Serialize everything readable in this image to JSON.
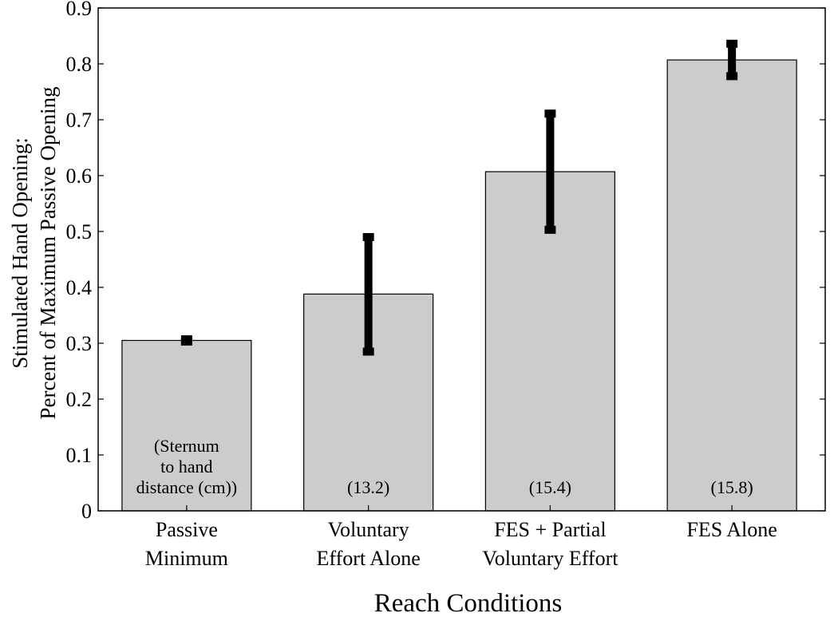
{
  "chart_data": {
    "type": "bar",
    "title": "",
    "xlabel": "Reach Conditions",
    "ylabel_lines": [
      "Stimulated Hand Opening:",
      "Percent of Maximum Passive Opening"
    ],
    "ylim": [
      0,
      0.9
    ],
    "yticks": [
      "0",
      "0.1",
      "0.2",
      "0.3",
      "0.4",
      "0.5",
      "0.6",
      "0.7",
      "0.8",
      "0.9"
    ],
    "categories": [
      [
        "Passive",
        "Minimum"
      ],
      [
        "Voluntary",
        "Effort Alone"
      ],
      [
        "FES + Partial",
        "Voluntary Effort"
      ],
      [
        "FES Alone"
      ]
    ],
    "values": [
      0.305,
      0.388,
      0.607,
      0.807
    ],
    "error_low": [
      0.303,
      0.285,
      0.503,
      0.778
    ],
    "error_high": [
      0.307,
      0.49,
      0.711,
      0.836
    ],
    "annotations": [
      [
        "(Sternum",
        "to hand",
        "distance (cm))"
      ],
      [
        "(13.2)"
      ],
      [
        "(15.4)"
      ],
      [
        "(15.8)"
      ]
    ],
    "bar_color": "#cccccc",
    "error_color": "#000000",
    "grid": false
  }
}
